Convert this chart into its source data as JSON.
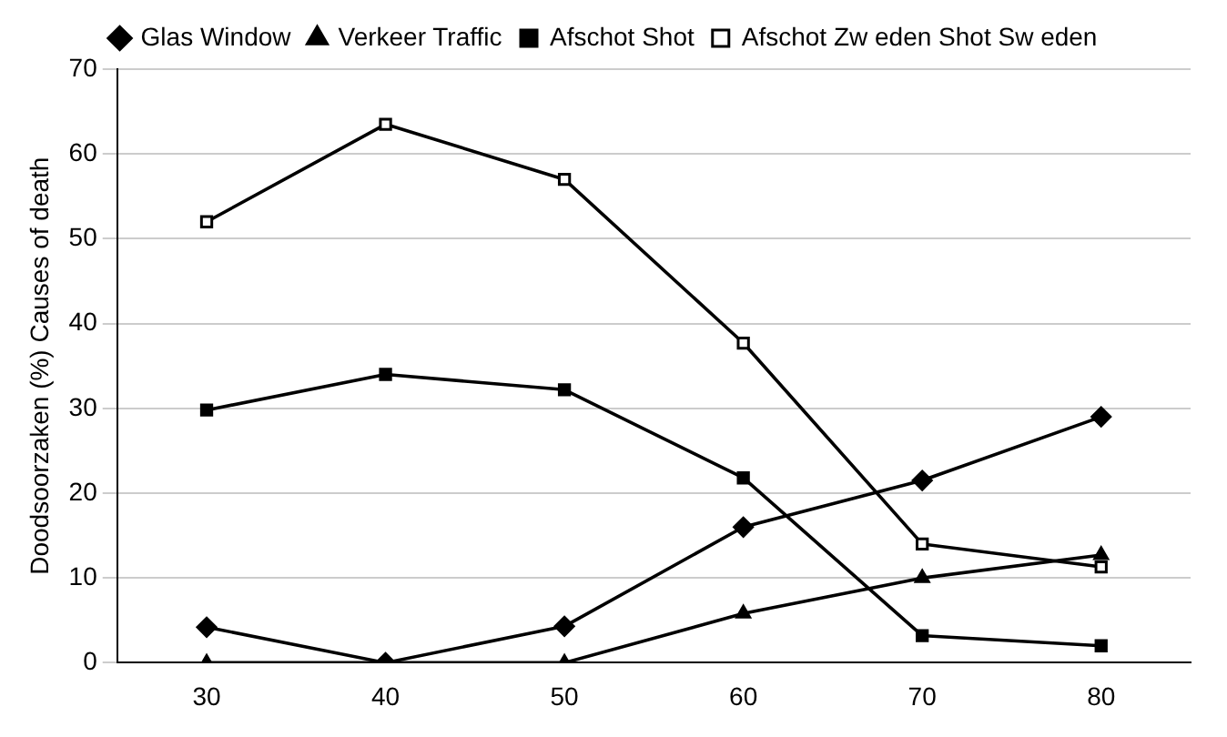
{
  "chart_data": {
    "type": "line",
    "ylabel": "Doodsoorzaken (%) Causes of death",
    "categories": [
      "30",
      "40",
      "50",
      "60",
      "70",
      "80"
    ],
    "series": [
      {
        "name": "Glas Window",
        "color": "#000000",
        "marker": "diamond",
        "values": [
          4.2,
          0,
          4.3,
          16,
          21.5,
          29
        ]
      },
      {
        "name": "Verkeer Traffic",
        "color": "#000000",
        "marker": "triangle",
        "values": [
          0,
          0,
          0,
          5.8,
          10,
          12.7
        ]
      },
      {
        "name": "Afschot Shot",
        "color": "#000000",
        "marker": "square",
        "values": [
          29.8,
          34,
          32.2,
          21.8,
          3.2,
          2
        ]
      },
      {
        "name": "Afschot Zw eden Shot Sw eden",
        "color": "#000000",
        "marker": "square",
        "values": [
          52,
          63.5,
          57,
          37.7,
          14,
          11.3
        ]
      }
    ],
    "ylim": [
      0,
      70
    ],
    "yticks": [
      0,
      10,
      20,
      30,
      40,
      50,
      60,
      70
    ],
    "grid": "y",
    "legend": "top"
  }
}
